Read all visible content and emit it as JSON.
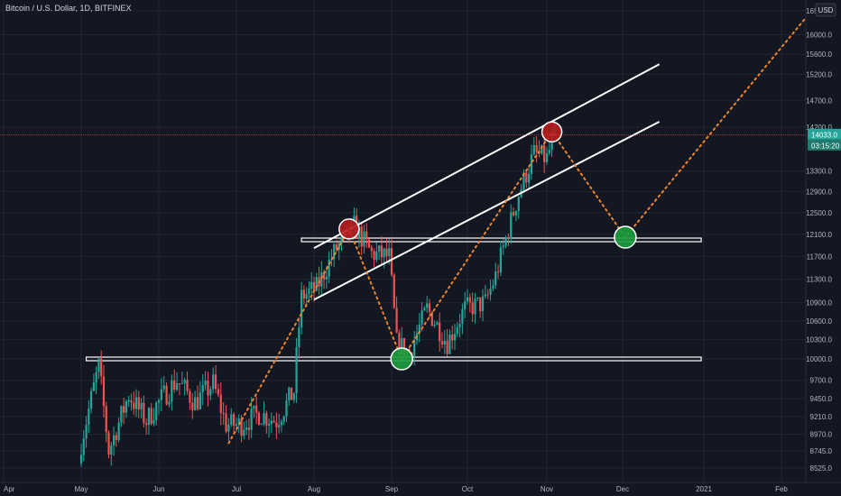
{
  "header": {
    "symbol": "Bitcoin / U.S. Dollar, 1D, BITFINEX"
  },
  "price_axis": {
    "currency": "USD",
    "ticks": [
      "16500.0",
      "16000.0",
      "15600.0",
      "15200.0",
      "14700.0",
      "14200.0",
      "13300.0",
      "12900.0",
      "12500.0",
      "12100.0",
      "11700.0",
      "11300.0",
      "10900.0",
      "10600.0",
      "10300.0",
      "10000.0",
      "9700.0",
      "9450.0",
      "9210.0",
      "8970.0",
      "8745.0",
      "8525.0"
    ],
    "current_price_label": "14033.0",
    "countdown_label": "03:15:20"
  },
  "time_axis": {
    "ticks": [
      "Apr",
      "May",
      "Jun",
      "Jul",
      "Aug",
      "Sep",
      "Oct",
      "Nov",
      "Dec",
      "2021",
      "Feb"
    ]
  },
  "colors": {
    "background": "#131722",
    "grid": "#1f2433",
    "up": "#26a69a",
    "down": "#ef5350",
    "projection": "#f0842c",
    "lines": "#ffffff",
    "current_price": "#26a69a",
    "countdown": "#1f7a6e",
    "highlight_red": "#b71c1c",
    "highlight_green": "#1b9e3e"
  },
  "chart_data": {
    "type": "candlestick",
    "title": "",
    "xlabel": "",
    "ylabel": "",
    "ylim": [
      8400,
      16600
    ],
    "xlim": [
      "2020-04-01",
      "2021-02-28"
    ],
    "scale": "log",
    "grid": true,
    "legend": "none",
    "current_price": 14033.0,
    "daily_close_estimates": [
      {
        "date": "2020-05-01",
        "close": 8850
      },
      {
        "date": "2020-05-08",
        "close": 9900
      },
      {
        "date": "2020-05-12",
        "close": 8750
      },
      {
        "date": "2020-05-20",
        "close": 9500
      },
      {
        "date": "2020-05-27",
        "close": 9150
      },
      {
        "date": "2020-06-02",
        "close": 9450
      },
      {
        "date": "2020-06-08",
        "close": 9700
      },
      {
        "date": "2020-06-15",
        "close": 9400
      },
      {
        "date": "2020-06-22",
        "close": 9650
      },
      {
        "date": "2020-06-27",
        "close": 9100
      },
      {
        "date": "2020-07-03",
        "close": 9100
      },
      {
        "date": "2020-07-10",
        "close": 9250
      },
      {
        "date": "2020-07-17",
        "close": 9150
      },
      {
        "date": "2020-07-24",
        "close": 9550
      },
      {
        "date": "2020-07-27",
        "close": 11000
      },
      {
        "date": "2020-08-02",
        "close": 11150
      },
      {
        "date": "2020-08-10",
        "close": 11850
      },
      {
        "date": "2020-08-17",
        "close": 12250
      },
      {
        "date": "2020-08-24",
        "close": 11750
      },
      {
        "date": "2020-08-31",
        "close": 11700
      },
      {
        "date": "2020-09-03",
        "close": 10250
      },
      {
        "date": "2020-09-08",
        "close": 10100
      },
      {
        "date": "2020-09-15",
        "close": 10800
      },
      {
        "date": "2020-09-23",
        "close": 10250
      },
      {
        "date": "2020-09-30",
        "close": 10800
      },
      {
        "date": "2020-10-08",
        "close": 10900
      },
      {
        "date": "2020-10-12",
        "close": 11350
      },
      {
        "date": "2020-10-21",
        "close": 12850
      },
      {
        "date": "2020-10-27",
        "close": 13650
      },
      {
        "date": "2020-11-01",
        "close": 13550
      },
      {
        "date": "2020-11-04",
        "close": 14033
      }
    ],
    "horizontal_levels": [
      12000,
      10000
    ],
    "channel": {
      "upper": [
        {
          "date": "2020-08-01",
          "price": 11850
        },
        {
          "date": "2020-12-15",
          "price": 15400
        }
      ],
      "lower": [
        {
          "date": "2020-08-01",
          "price": 10950
        },
        {
          "date": "2020-12-15",
          "price": 14300
        }
      ]
    },
    "projection_path": [
      {
        "date": "2020-06-28",
        "price": 8850
      },
      {
        "date": "2020-08-15",
        "price": 12200
      },
      {
        "date": "2020-09-05",
        "price": 10000
      },
      {
        "date": "2020-11-03",
        "price": 14100
      },
      {
        "date": "2020-12-02",
        "price": 12050
      },
      {
        "date": "2021-02-28",
        "price": 17500
      }
    ],
    "markers": [
      {
        "kind": "top",
        "date": "2020-08-15",
        "price": 12200
      },
      {
        "kind": "bottom",
        "date": "2020-09-05",
        "price": 10000
      },
      {
        "kind": "top",
        "date": "2020-11-03",
        "price": 14100
      },
      {
        "kind": "bottom",
        "date": "2020-12-02",
        "price": 12050
      }
    ]
  }
}
